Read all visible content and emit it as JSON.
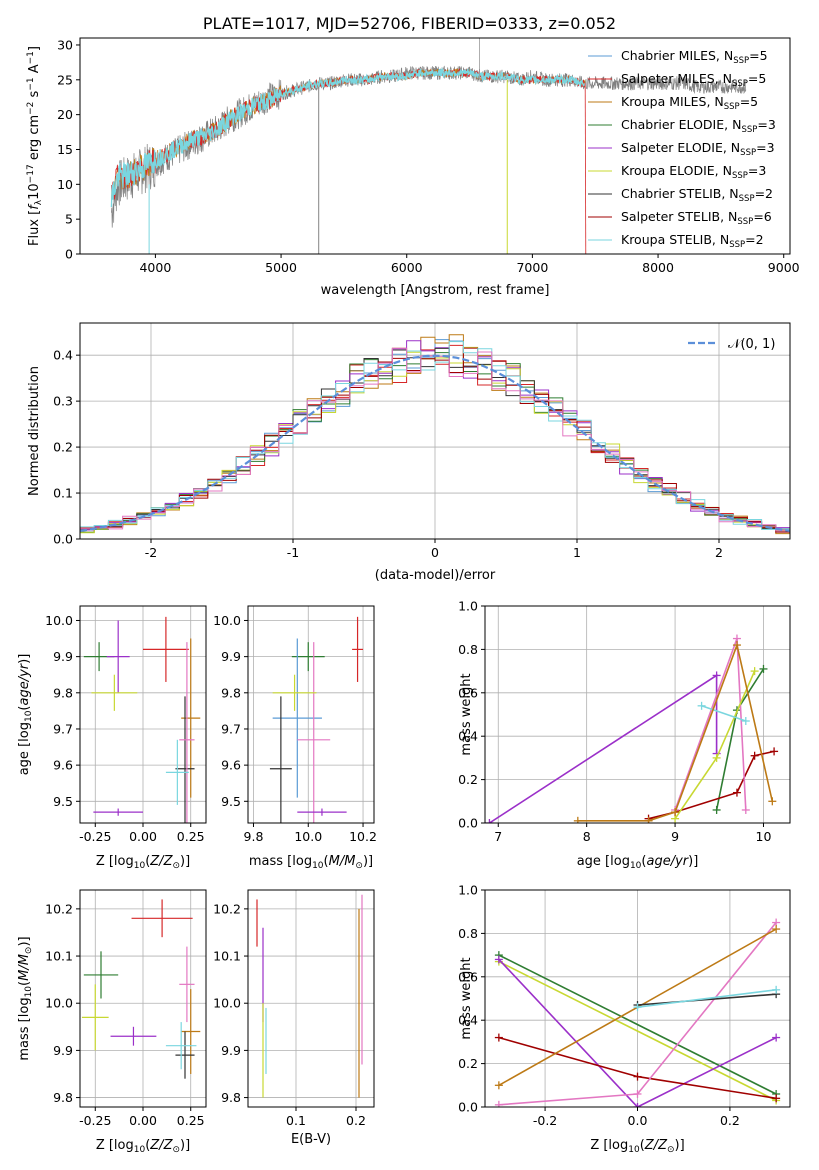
{
  "figure_title": "PLATE=1017, MJD=52706, FIBERID=0333, z=0.052",
  "legend_top": [
    {
      "label": "Chabrier MILES, N",
      "sub": "SSP",
      "suffix": "=5",
      "color": "#5b9bd5"
    },
    {
      "label": "Salpeter MILES, N",
      "sub": "SSP",
      "suffix": "=5",
      "color": "#d62728"
    },
    {
      "label": "Kroupa MILES, N",
      "sub": "SSP",
      "suffix": "=5",
      "color": "#bd7a16"
    },
    {
      "label": "Chabrier ELODIE, N",
      "sub": "SSP",
      "suffix": "=3",
      "color": "#2f7d32"
    },
    {
      "label": "Salpeter ELODIE, N",
      "sub": "SSP",
      "suffix": "=3",
      "color": "#9b30c9"
    },
    {
      "label": "Kroupa ELODIE, N",
      "sub": "SSP",
      "suffix": "=3",
      "color": "#c8d832"
    },
    {
      "label": "Chabrier STELIB, N",
      "sub": "SSP",
      "suffix": "=2",
      "color": "#333333"
    },
    {
      "label": "Salpeter STELIB, N",
      "sub": "SSP",
      "suffix": "=6",
      "color": "#a00000"
    },
    {
      "label": "Kroupa STELIB, N",
      "sub": "SSP",
      "suffix": "=2",
      "color": "#7ad6df"
    }
  ],
  "normal_legend": "𝒩(0, 1)",
  "chart_data": [
    {
      "id": "spectrum",
      "type": "line",
      "xlabel": "wavelength [Angstrom, rest frame]",
      "ylabel": "Flux [f_λ10^-17 erg cm^-2 s^-1 A^-1]",
      "xlim": [
        3400,
        9050
      ],
      "ylim": [
        0,
        31
      ],
      "xticks": [
        4000,
        5000,
        6000,
        7000,
        8000,
        9000
      ],
      "yticks": [
        0,
        5,
        10,
        15,
        20,
        25,
        30
      ],
      "grid": false,
      "legend": "right",
      "data_x": [
        3650,
        3700,
        3800,
        3900,
        4000,
        4100,
        4200,
        4300,
        4400,
        4500,
        4600,
        4700,
        4800,
        4900,
        5000,
        5100,
        5200,
        5300,
        5400,
        5500,
        5600,
        5700,
        5800,
        5900,
        6000,
        6100,
        6200,
        6300,
        6400,
        6500,
        6600,
        6700,
        6800,
        6900,
        7000,
        7100,
        7200,
        7300,
        7400,
        7500,
        7600,
        7700,
        7800,
        7900,
        8000,
        8100,
        8200,
        8300,
        8400,
        8500,
        8600,
        8700
      ],
      "data_y": [
        6,
        10,
        11,
        12,
        13,
        14,
        15,
        16,
        17,
        18,
        19.5,
        20.5,
        21.5,
        22.5,
        23,
        23.5,
        24,
        24.5,
        24.5,
        25,
        25,
        25,
        25.5,
        25.5,
        26,
        26,
        26,
        26,
        26,
        26,
        25.5,
        25.5,
        25.5,
        25,
        25.5,
        25,
        25,
        25,
        24.5,
        24.5,
        24.5,
        24.5,
        24.5,
        24.5,
        24.5,
        24.5,
        24.5,
        24,
        24,
        24,
        24,
        24
      ],
      "model_y": [
        8,
        11,
        11.5,
        12.5,
        13.5,
        14.5,
        15.5,
        16.5,
        17,
        18,
        19.5,
        20.5,
        21.5,
        22,
        23,
        23.5,
        24,
        24.5,
        24.5,
        25,
        25,
        25,
        25.5,
        25.5,
        25.5,
        26,
        26,
        26,
        26,
        26,
        25.5,
        25.5,
        25.5,
        25,
        25,
        25,
        25,
        25,
        24.5,
        24.5,
        24.5,
        24.5,
        24.5,
        24.5,
        24.5,
        24.5,
        24.5,
        24,
        24,
        24,
        24,
        24
      ]
    },
    {
      "id": "residuals",
      "type": "line",
      "xlabel": "(data-model)/error",
      "ylabel": "Normed distribution",
      "xlim": [
        -2.5,
        2.5
      ],
      "ylim": [
        0,
        0.47
      ],
      "xticks": [
        -2,
        -1,
        0,
        1,
        2
      ],
      "yticks": [
        0.0,
        0.1,
        0.2,
        0.3,
        0.4
      ],
      "grid": true,
      "legend": "top-right"
    },
    {
      "id": "age_vs_Z",
      "type": "scatter",
      "xlabel": "Z [log10(Z/Z⊙)]",
      "ylabel": "age  [log10(age/yr)]",
      "xlim": [
        -0.33,
        0.33
      ],
      "ylim": [
        9.44,
        10.04
      ],
      "xticks": [
        -0.25,
        0.0,
        0.25
      ],
      "yticks": [
        9.5,
        9.6,
        9.7,
        9.8,
        9.9,
        10.0
      ],
      "points": [
        {
          "x": 0.12,
          "y": 9.92,
          "xerr": 0.12,
          "yerr": 0.09,
          "color": "#d62728"
        },
        {
          "x": -0.23,
          "y": 9.9,
          "xerr": 0.08,
          "yerr": 0.04,
          "color": "#2f7d32"
        },
        {
          "x": -0.13,
          "y": 9.9,
          "xerr": 0.06,
          "yerr": 0.1,
          "color": "#9b30c9"
        },
        {
          "x": -0.15,
          "y": 9.8,
          "xerr": 0.12,
          "yerr": 0.05,
          "color": "#c8d832"
        },
        {
          "x": 0.25,
          "y": 9.73,
          "xerr": 0.05,
          "yerr": 0.22,
          "color": "#bd7a16"
        },
        {
          "x": 0.22,
          "y": 9.59,
          "xerr": 0.05,
          "yerr": 0.2,
          "color": "#333333"
        },
        {
          "x": 0.23,
          "y": 9.67,
          "xerr": 0.04,
          "yerr": 0.27,
          "color": "#e377c2"
        },
        {
          "x": 0.18,
          "y": 9.58,
          "xerr": 0.06,
          "yerr": 0.09,
          "color": "#7ad6df"
        },
        {
          "x": -0.13,
          "y": 9.47,
          "xerr": 0.13,
          "yerr": 0.01,
          "color": "#9b30c9"
        }
      ]
    },
    {
      "id": "age_vs_mass",
      "type": "scatter",
      "xlabel": "mass [log10(M/M⊙)]",
      "ylabel": "",
      "xlim": [
        9.78,
        10.24
      ],
      "ylim": [
        9.44,
        10.04
      ],
      "xticks": [
        9.8,
        10.0,
        10.2
      ],
      "yticks": [
        9.5,
        9.6,
        9.7,
        9.8,
        9.9,
        10.0
      ],
      "points": [
        {
          "x": 10.18,
          "y": 9.92,
          "xerr": 0.02,
          "yerr": 0.09,
          "color": "#d62728"
        },
        {
          "x": 10.0,
          "y": 9.9,
          "xerr": 0.06,
          "yerr": 0.04,
          "color": "#2f7d32"
        },
        {
          "x": 9.96,
          "y": 9.73,
          "xerr": 0.09,
          "yerr": 0.22,
          "color": "#5b9bd5"
        },
        {
          "x": 9.9,
          "y": 9.59,
          "xerr": 0.04,
          "yerr": 0.2,
          "color": "#333333"
        },
        {
          "x": 10.02,
          "y": 9.67,
          "xerr": 0.06,
          "yerr": 0.27,
          "color": "#e377c2"
        },
        {
          "x": 10.05,
          "y": 9.47,
          "xerr": 0.09,
          "yerr": 0.01,
          "color": "#9b30c9"
        },
        {
          "x": 9.95,
          "y": 9.8,
          "xerr": 0.08,
          "yerr": 0.05,
          "color": "#c8d832"
        }
      ]
    },
    {
      "id": "weight_vs_age",
      "type": "line",
      "xlabel": "age  [log10(age/yr)]",
      "ylabel": "mass weight",
      "xlim": [
        6.85,
        10.3
      ],
      "ylim": [
        0,
        1.0
      ],
      "xticks": [
        7,
        8,
        9,
        10
      ],
      "yticks": [
        0.0,
        0.2,
        0.4,
        0.6,
        0.8,
        1.0
      ],
      "series": [
        {
          "color": "#9b30c9",
          "x": [
            6.9,
            9.47,
            9.47
          ],
          "y": [
            0.0,
            0.68,
            0.32
          ]
        },
        {
          "color": "#2f7d32",
          "x": [
            9.47,
            9.7,
            10.0
          ],
          "y": [
            0.06,
            0.52,
            0.71
          ]
        },
        {
          "color": "#a00000",
          "x": [
            8.7,
            9.0,
            9.7,
            9.9,
            10.12
          ],
          "y": [
            0.02,
            0.05,
            0.14,
            0.31,
            0.33
          ]
        },
        {
          "color": "#e377c2",
          "x": [
            9.0,
            9.7,
            9.8
          ],
          "y": [
            0.06,
            0.85,
            0.06
          ]
        },
        {
          "color": "#c8d832",
          "x": [
            9.0,
            9.47,
            9.9
          ],
          "y": [
            0.02,
            0.3,
            0.7
          ]
        },
        {
          "color": "#7ad6df",
          "x": [
            9.3,
            9.8
          ],
          "y": [
            0.54,
            0.47
          ]
        },
        {
          "color": "#bd7a16",
          "x": [
            7.9,
            8.7,
            9.0,
            9.7,
            10.1
          ],
          "y": [
            0.01,
            0.01,
            0.05,
            0.82,
            0.1
          ]
        }
      ]
    },
    {
      "id": "mass_vs_Z",
      "type": "scatter",
      "xlabel": "Z [log10(Z/Z⊙)]",
      "ylabel": "mass [log10(M/M⊙)]",
      "xlim": [
        -0.33,
        0.33
      ],
      "ylim": [
        9.78,
        10.24
      ],
      "xticks": [
        -0.25,
        0.0,
        0.25
      ],
      "yticks": [
        9.8,
        9.9,
        10.0,
        10.1,
        10.2
      ],
      "points": [
        {
          "x": 0.1,
          "y": 10.18,
          "xerr": 0.16,
          "yerr": 0.04,
          "color": "#d62728"
        },
        {
          "x": -0.22,
          "y": 10.06,
          "xerr": 0.09,
          "yerr": 0.05,
          "color": "#2f7d32"
        },
        {
          "x": -0.25,
          "y": 9.97,
          "xerr": 0.07,
          "yerr": 0.07,
          "color": "#c8d832"
        },
        {
          "x": -0.05,
          "y": 9.93,
          "xerr": 0.12,
          "yerr": 0.02,
          "color": "#9b30c9"
        },
        {
          "x": 0.25,
          "y": 9.94,
          "xerr": 0.05,
          "yerr": 0.09,
          "color": "#bd7a16"
        },
        {
          "x": 0.23,
          "y": 10.04,
          "xerr": 0.04,
          "yerr": 0.08,
          "color": "#e377c2"
        },
        {
          "x": 0.22,
          "y": 9.89,
          "xerr": 0.05,
          "yerr": 0.05,
          "color": "#333333"
        },
        {
          "x": 0.2,
          "y": 9.91,
          "xerr": 0.08,
          "yerr": 0.05,
          "color": "#7ad6df"
        }
      ]
    },
    {
      "id": "mass_vs_EBV",
      "type": "scatter",
      "xlabel": "E(B-V)",
      "ylabel": "",
      "xlim": [
        0.02,
        0.23
      ],
      "ylim": [
        9.78,
        10.24
      ],
      "xticks": [
        0.1,
        0.2
      ],
      "yticks": [
        9.8,
        9.9,
        10.0,
        10.1,
        10.2
      ],
      "points": [
        {
          "x": 0.035,
          "y": 10.17,
          "xerr": 0.0,
          "yerr": 0.05,
          "color": "#d62728"
        },
        {
          "x": 0.045,
          "y": 10.06,
          "xerr": 0.0,
          "yerr": 0.1,
          "color": "#9b30c9"
        },
        {
          "x": 0.045,
          "y": 9.9,
          "xerr": 0.0,
          "yerr": 0.1,
          "color": "#c8d832"
        },
        {
          "x": 0.05,
          "y": 9.92,
          "xerr": 0.0,
          "yerr": 0.07,
          "color": "#7ad6df"
        },
        {
          "x": 0.205,
          "y": 10.0,
          "xerr": 0.0,
          "yerr": 0.2,
          "color": "#bd7a16"
        },
        {
          "x": 0.21,
          "y": 10.05,
          "xerr": 0.0,
          "yerr": 0.18,
          "color": "#e377c2"
        }
      ]
    },
    {
      "id": "weight_vs_Z",
      "type": "line",
      "xlabel": "Z [log10(Z/Z⊙)]",
      "ylabel": "mass weight",
      "xlim": [
        -0.33,
        0.33
      ],
      "ylim": [
        0,
        1.0
      ],
      "xticks": [
        -0.2,
        0.0,
        0.2
      ],
      "yticks": [
        0.0,
        0.2,
        0.4,
        0.6,
        0.8,
        1.0
      ],
      "series": [
        {
          "color": "#2f7d32",
          "x": [
            -0.3,
            0.3
          ],
          "y": [
            0.7,
            0.06
          ]
        },
        {
          "color": "#c8d832",
          "x": [
            -0.3,
            0.3
          ],
          "y": [
            0.67,
            0.03
          ]
        },
        {
          "color": "#9b30c9",
          "x": [
            -0.3,
            0.0,
            0.3
          ],
          "y": [
            0.68,
            0.0,
            0.32
          ]
        },
        {
          "color": "#a00000",
          "x": [
            -0.3,
            0.0,
            0.3
          ],
          "y": [
            0.32,
            0.14,
            0.04
          ]
        },
        {
          "color": "#e377c2",
          "x": [
            -0.3,
            0.0,
            0.3
          ],
          "y": [
            0.01,
            0.06,
            0.85
          ]
        },
        {
          "color": "#bd7a16",
          "x": [
            -0.3,
            0.3
          ],
          "y": [
            0.1,
            0.82
          ]
        },
        {
          "color": "#333333",
          "x": [
            0.0,
            0.3
          ],
          "y": [
            0.47,
            0.52
          ]
        },
        {
          "color": "#7ad6df",
          "x": [
            0.0,
            0.3
          ],
          "y": [
            0.46,
            0.54
          ]
        }
      ]
    }
  ]
}
